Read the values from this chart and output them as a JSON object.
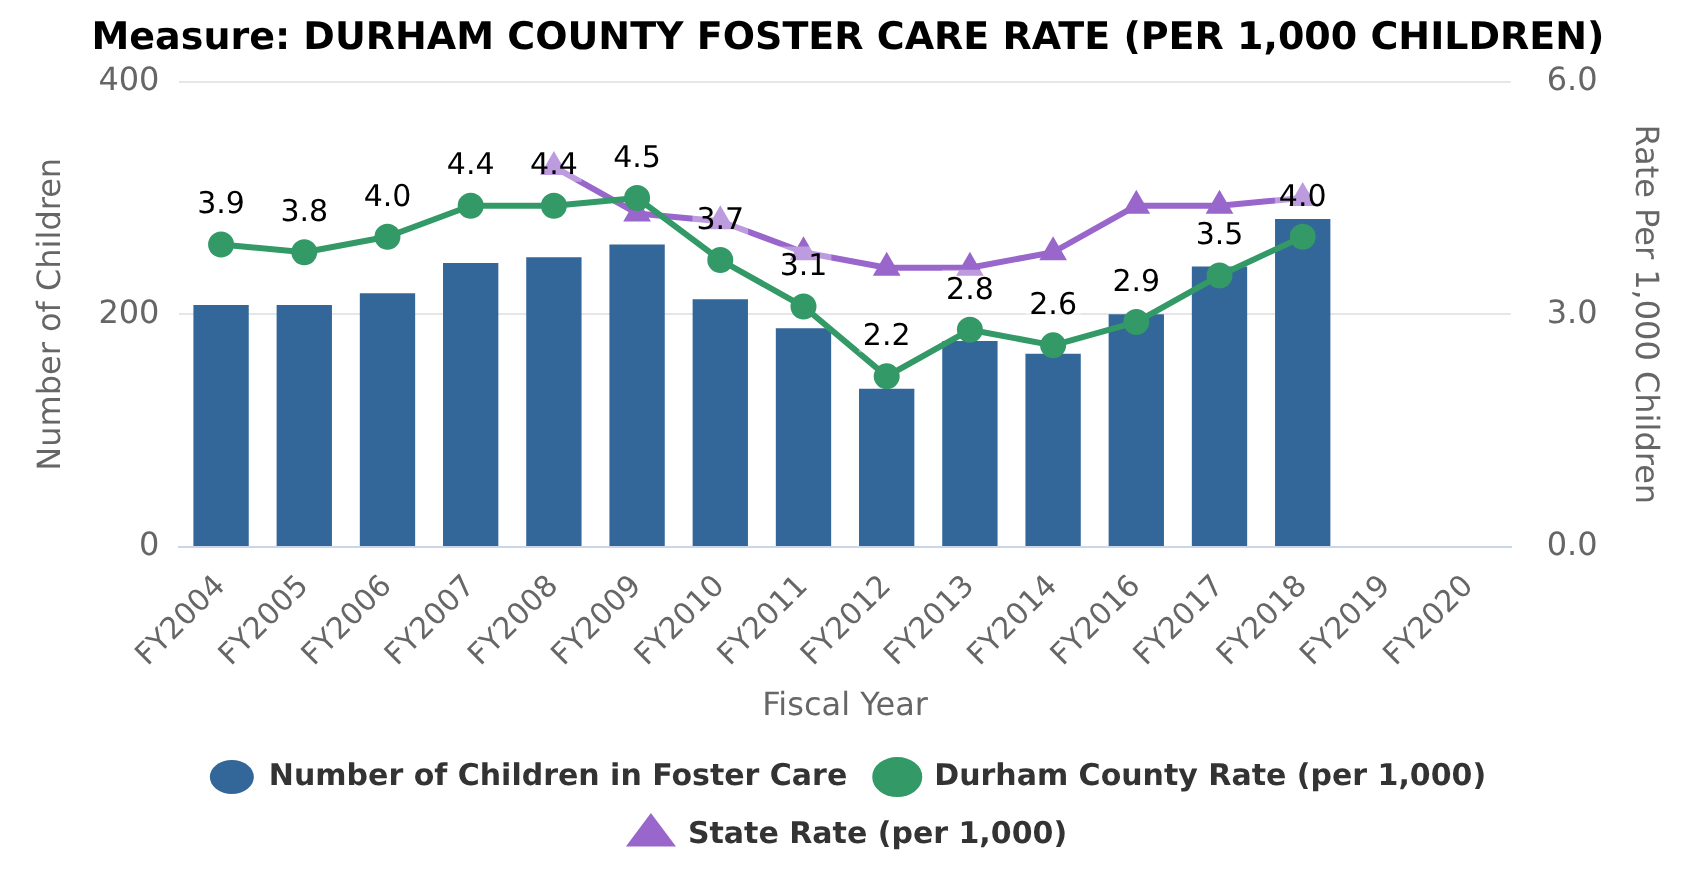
{
  "chart_data": {
    "type": "bar",
    "title": "Measure: DURHAM COUNTY FOSTER CARE RATE (PER 1,000 CHILDREN)",
    "xlabel": "Fiscal Year",
    "ylabel": "Number of Children",
    "y2label": "Rate Per 1,000 Children",
    "categories": [
      "FY2004",
      "FY2005",
      "FY2006",
      "FY2007",
      "FY2008",
      "FY2009",
      "FY2010",
      "FY2011",
      "FY2012",
      "FY2013",
      "FY2014",
      "FY2016",
      "FY2017",
      "FY2018",
      "FY2019",
      "FY2020"
    ],
    "series": [
      {
        "name": "Number of Children in Foster Care",
        "color": "#336699",
        "values": [
          208,
          208,
          218,
          244,
          249,
          260,
          213,
          188,
          136,
          177,
          166,
          200,
          241,
          282,
          null,
          null
        ]
      },
      {
        "name": "Durham County Rate (per 1,000)",
        "type": "line",
        "axis": "y2",
        "marker": "circle",
        "color": "#339966",
        "values": [
          3.9,
          3.8,
          4.0,
          4.4,
          4.4,
          4.5,
          3.7,
          3.1,
          2.2,
          2.8,
          2.6,
          2.9,
          3.5,
          4.0,
          null,
          null
        ],
        "value_labels": [
          "3.9",
          "3.8",
          "4.0",
          "4.4",
          "4.4",
          "4.5",
          "3.7",
          "3.1",
          "2.2",
          "2.8",
          "2.6",
          "2.9",
          "3.5",
          "4.0",
          null,
          null
        ]
      },
      {
        "name": "State Rate (per 1,000)",
        "type": "line",
        "axis": "y2",
        "marker": "triangle",
        "color": "#9966cc",
        "values": [
          null,
          null,
          null,
          null,
          4.9,
          4.3,
          4.2,
          3.8,
          3.6,
          3.6,
          3.8,
          4.4,
          4.4,
          4.5,
          null,
          null
        ]
      }
    ],
    "ylim": [
      0,
      400
    ],
    "yticks": [
      0,
      200,
      400
    ],
    "y2lim": [
      0,
      6
    ],
    "y2ticks": [
      {
        "value": 0,
        "label": "0.0"
      },
      {
        "value": 3,
        "label": "3.0"
      },
      {
        "value": 6,
        "label": "6.0"
      }
    ],
    "grid": "y",
    "legend": "bottom"
  }
}
